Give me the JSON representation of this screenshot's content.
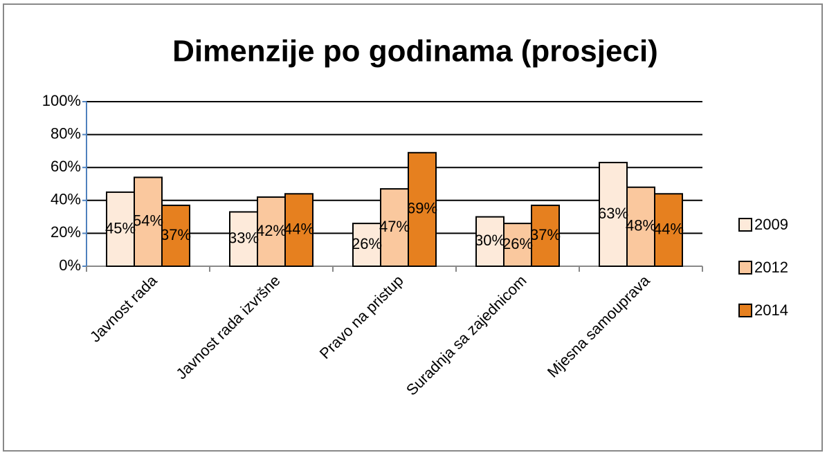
{
  "chart_data": {
    "type": "bar",
    "title": "Dimenzije po godinama (prosjeci)",
    "categories": [
      "Javnost rada",
      "Javnost rada izvršne",
      "Pravo na pristup",
      "Suradnja sa zajednicom",
      "Mjesna samouprava"
    ],
    "series": [
      {
        "name": "2009",
        "color": "#fdeada",
        "values": [
          45,
          33,
          26,
          30,
          63
        ],
        "value_labels": [
          "45%",
          "33%",
          "26%",
          "30%",
          "63%"
        ]
      },
      {
        "name": "2012",
        "color": "#fac89e",
        "values": [
          54,
          42,
          47,
          26,
          48
        ],
        "value_labels": [
          "54%",
          "42%",
          "47%",
          "26%",
          "48%"
        ]
      },
      {
        "name": "2014",
        "color": "#e6801f",
        "values": [
          37,
          44,
          69,
          37,
          44
        ],
        "value_labels": [
          "37%",
          "44%",
          "69%",
          "37%",
          "44%"
        ]
      }
    ],
    "ylim": [
      0,
      100
    ],
    "yticks": [
      {
        "value": 0,
        "label": "0%"
      },
      {
        "value": 20,
        "label": "20%"
      },
      {
        "value": 40,
        "label": "40%"
      },
      {
        "value": 60,
        "label": "60%"
      },
      {
        "value": 80,
        "label": "80%"
      },
      {
        "value": 100,
        "label": "100%"
      }
    ],
    "grid": true,
    "legend": "right"
  }
}
